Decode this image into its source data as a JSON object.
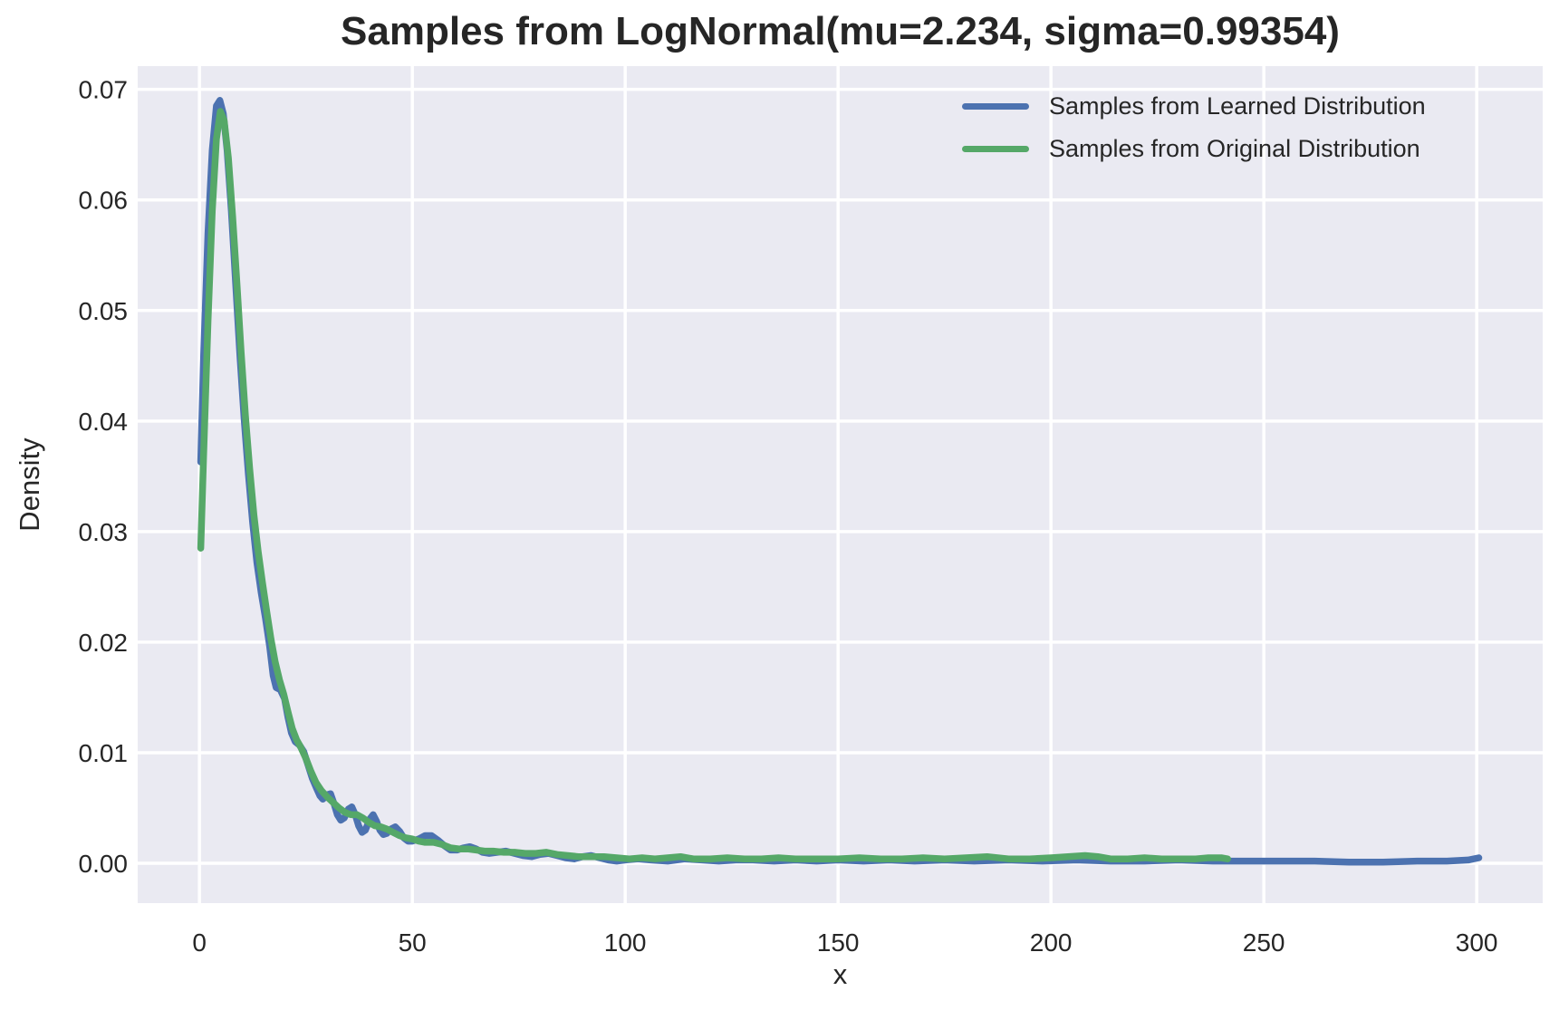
{
  "figure": {
    "title": "Samples from LogNormal(mu=2.234, sigma=0.99354)",
    "background": "#ffffff"
  },
  "axes": {
    "xlabel": "x",
    "ylabel": "Density",
    "plot_background": "#eaeaf2",
    "grid_color": "#ffffff",
    "text_color": "#262626"
  },
  "legend": {
    "entries": [
      {
        "label": "Samples from Learned Distribution",
        "color": "#4c72b0"
      },
      {
        "label": "Samples from Original Distribution",
        "color": "#55a868"
      }
    ]
  },
  "chart_data": {
    "type": "line",
    "subtype": "kde",
    "title": "Samples from LogNormal(mu=2.234, sigma=0.99354)",
    "xlabel": "x",
    "ylabel": "Density",
    "grid": true,
    "legend_position": "upper right",
    "xlim": [
      -14.5,
      315.5
    ],
    "ylim": [
      -0.0036,
      0.0721
    ],
    "x_ticks": [
      "0",
      "50",
      "100",
      "150",
      "200",
      "250",
      "300"
    ],
    "y_ticks": [
      "0.00",
      "0.01",
      "0.02",
      "0.03",
      "0.04",
      "0.05",
      "0.06",
      "0.07"
    ],
    "series": [
      {
        "name": "Samples from Learned Distribution",
        "color": "#4c72b0",
        "points": [
          [
            0.3,
            0.0363
          ],
          [
            1,
            0.046
          ],
          [
            2,
            0.057
          ],
          [
            3,
            0.0645
          ],
          [
            4,
            0.0685
          ],
          [
            4.8,
            0.069
          ],
          [
            5.6,
            0.0678
          ],
          [
            6.5,
            0.0645
          ],
          [
            7.5,
            0.059
          ],
          [
            8.5,
            0.0525
          ],
          [
            9.5,
            0.046
          ],
          [
            10.5,
            0.0402
          ],
          [
            11.5,
            0.0352
          ],
          [
            12.5,
            0.0308
          ],
          [
            13.5,
            0.0272
          ],
          [
            14.5,
            0.0245
          ],
          [
            15.5,
            0.0222
          ],
          [
            16.5,
            0.0196
          ],
          [
            17.3,
            0.017
          ],
          [
            18,
            0.0159
          ],
          [
            19,
            0.0157
          ],
          [
            20,
            0.0149
          ],
          [
            20.8,
            0.0132
          ],
          [
            21.6,
            0.0118
          ],
          [
            22.5,
            0.011
          ],
          [
            23.5,
            0.0107
          ],
          [
            24.5,
            0.0101
          ],
          [
            25.5,
            0.0089
          ],
          [
            26.5,
            0.0077
          ],
          [
            27.5,
            0.0068
          ],
          [
            28.3,
            0.0061
          ],
          [
            29,
            0.0058
          ],
          [
            30,
            0.0062
          ],
          [
            30.8,
            0.0063
          ],
          [
            31.6,
            0.0054
          ],
          [
            32.4,
            0.0044
          ],
          [
            33.2,
            0.0039
          ],
          [
            34,
            0.0041
          ],
          [
            35,
            0.0049
          ],
          [
            35.8,
            0.0051
          ],
          [
            36.6,
            0.0044
          ],
          [
            37.4,
            0.0034
          ],
          [
            38.2,
            0.0028
          ],
          [
            39,
            0.003
          ],
          [
            40,
            0.004
          ],
          [
            40.8,
            0.0044
          ],
          [
            41.6,
            0.0038
          ],
          [
            42.4,
            0.003
          ],
          [
            43.2,
            0.0026
          ],
          [
            44,
            0.0027
          ],
          [
            45,
            0.0031
          ],
          [
            46,
            0.0033
          ],
          [
            47,
            0.0029
          ],
          [
            48,
            0.0023
          ],
          [
            49,
            0.002
          ],
          [
            50,
            0.002
          ],
          [
            51.5,
            0.0022
          ],
          [
            53,
            0.0025
          ],
          [
            54.5,
            0.0025
          ],
          [
            56,
            0.0021
          ],
          [
            57.5,
            0.0016
          ],
          [
            59,
            0.0012
          ],
          [
            60.5,
            0.0012
          ],
          [
            62,
            0.0014
          ],
          [
            63.5,
            0.0015
          ],
          [
            65,
            0.0013
          ],
          [
            66.5,
            0.001
          ],
          [
            68,
            0.0009
          ],
          [
            70,
            0.001
          ],
          [
            72,
            0.0011
          ],
          [
            74,
            0.0009
          ],
          [
            76,
            0.0007
          ],
          [
            78,
            0.0006
          ],
          [
            80,
            0.0008
          ],
          [
            82,
            0.0009
          ],
          [
            84,
            0.0007
          ],
          [
            86,
            0.0005
          ],
          [
            88,
            0.0004
          ],
          [
            90,
            0.0006
          ],
          [
            92,
            0.0007
          ],
          [
            94,
            0.0005
          ],
          [
            96,
            0.0003
          ],
          [
            98,
            0.0002
          ],
          [
            100,
            0.0003
          ],
          [
            103,
            0.0004
          ],
          [
            106,
            0.0003
          ],
          [
            110,
            0.0002
          ],
          [
            114,
            0.0004
          ],
          [
            118,
            0.0003
          ],
          [
            122,
            0.0002
          ],
          [
            126,
            0.0003
          ],
          [
            130,
            0.0003
          ],
          [
            135,
            0.0002
          ],
          [
            140,
            0.0003
          ],
          [
            145,
            0.0002
          ],
          [
            150,
            0.0003
          ],
          [
            156,
            0.0002
          ],
          [
            162,
            0.0003
          ],
          [
            168,
            0.0002
          ],
          [
            175,
            0.0003
          ],
          [
            182,
            0.0002
          ],
          [
            190,
            0.0003
          ],
          [
            198,
            0.0002
          ],
          [
            206,
            0.0003
          ],
          [
            214,
            0.0002
          ],
          [
            222,
            0.0002
          ],
          [
            230,
            0.0003
          ],
          [
            238,
            0.0002
          ],
          [
            246,
            0.0002
          ],
          [
            254,
            0.0002
          ],
          [
            262,
            0.0002
          ],
          [
            270,
            0.0001
          ],
          [
            278,
            0.0001
          ],
          [
            286,
            0.0002
          ],
          [
            293,
            0.0002
          ],
          [
            298,
            0.0003
          ],
          [
            300.5,
            0.0005
          ]
        ]
      },
      {
        "name": "Samples from Original Distribution",
        "color": "#55a868",
        "points": [
          [
            0.3,
            0.0285
          ],
          [
            1,
            0.037
          ],
          [
            2,
            0.049
          ],
          [
            3,
            0.059
          ],
          [
            4,
            0.0655
          ],
          [
            4.9,
            0.068
          ],
          [
            5.8,
            0.0672
          ],
          [
            6.8,
            0.0638
          ],
          [
            7.8,
            0.0585
          ],
          [
            8.8,
            0.0525
          ],
          [
            9.8,
            0.0462
          ],
          [
            10.8,
            0.0405
          ],
          [
            11.8,
            0.0357
          ],
          [
            12.8,
            0.0315
          ],
          [
            13.8,
            0.0282
          ],
          [
            14.8,
            0.0254
          ],
          [
            15.8,
            0.0228
          ],
          [
            16.8,
            0.0203
          ],
          [
            17.8,
            0.0182
          ],
          [
            18.8,
            0.0166
          ],
          [
            19.8,
            0.0153
          ],
          [
            20.8,
            0.0137
          ],
          [
            21.8,
            0.0122
          ],
          [
            22.8,
            0.0112
          ],
          [
            23.8,
            0.0105
          ],
          [
            25,
            0.0095
          ],
          [
            26.2,
            0.0083
          ],
          [
            27.4,
            0.0073
          ],
          [
            28.6,
            0.0066
          ],
          [
            30,
            0.006
          ],
          [
            31.4,
            0.0055
          ],
          [
            32.8,
            0.005
          ],
          [
            34.2,
            0.0046
          ],
          [
            35.6,
            0.0044
          ],
          [
            37,
            0.0044
          ],
          [
            38.4,
            0.0041
          ],
          [
            39.8,
            0.0037
          ],
          [
            41.2,
            0.0034
          ],
          [
            42.6,
            0.0033
          ],
          [
            44,
            0.0031
          ],
          [
            45.5,
            0.0028
          ],
          [
            47,
            0.0025
          ],
          [
            48.5,
            0.0023
          ],
          [
            50,
            0.0022
          ],
          [
            51.5,
            0.002
          ],
          [
            53,
            0.0019
          ],
          [
            55,
            0.0019
          ],
          [
            57,
            0.0017
          ],
          [
            59,
            0.0014
          ],
          [
            61,
            0.0013
          ],
          [
            63,
            0.0013
          ],
          [
            65,
            0.0012
          ],
          [
            67,
            0.0011
          ],
          [
            69,
            0.0011
          ],
          [
            71.5,
            0.001
          ],
          [
            74,
            0.001
          ],
          [
            76.5,
            0.0009
          ],
          [
            79,
            0.0009
          ],
          [
            81.5,
            0.001
          ],
          [
            84,
            0.0008
          ],
          [
            86.5,
            0.0007
          ],
          [
            89,
            0.0006
          ],
          [
            92,
            0.0006
          ],
          [
            95,
            0.0006
          ],
          [
            98,
            0.0005
          ],
          [
            101,
            0.0004
          ],
          [
            104,
            0.0005
          ],
          [
            107,
            0.0004
          ],
          [
            110,
            0.0005
          ],
          [
            113,
            0.0006
          ],
          [
            116,
            0.0004
          ],
          [
            120,
            0.0004
          ],
          [
            124,
            0.0005
          ],
          [
            128,
            0.0004
          ],
          [
            132,
            0.0004
          ],
          [
            136,
            0.0005
          ],
          [
            140,
            0.0004
          ],
          [
            145,
            0.0004
          ],
          [
            150,
            0.0004
          ],
          [
            155,
            0.0005
          ],
          [
            160,
            0.0004
          ],
          [
            165,
            0.0004
          ],
          [
            170,
            0.0005
          ],
          [
            175,
            0.0004
          ],
          [
            180,
            0.0005
          ],
          [
            185,
            0.0006
          ],
          [
            190,
            0.0004
          ],
          [
            195,
            0.0004
          ],
          [
            200,
            0.0005
          ],
          [
            204,
            0.0006
          ],
          [
            208,
            0.0007
          ],
          [
            211,
            0.0006
          ],
          [
            214,
            0.0004
          ],
          [
            218,
            0.0004
          ],
          [
            222,
            0.0005
          ],
          [
            226,
            0.0004
          ],
          [
            230,
            0.0004
          ],
          [
            234,
            0.0004
          ],
          [
            237,
            0.0005
          ],
          [
            240,
            0.0005
          ],
          [
            241.5,
            0.0004
          ]
        ]
      }
    ]
  }
}
